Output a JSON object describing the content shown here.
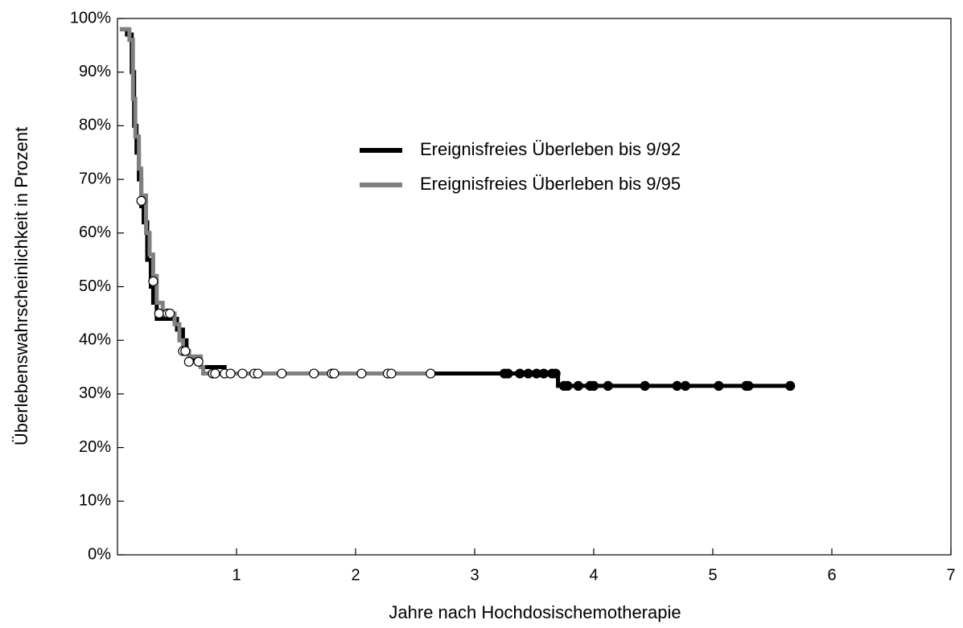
{
  "chart_data": {
    "type": "step",
    "x_label": "Jahre nach Hochdosischemotherapie",
    "y_label": "Überlebenswahrscheinlichkeit in Prozent",
    "xlim": [
      0,
      7
    ],
    "xticks": [
      1,
      2,
      3,
      4,
      5,
      6,
      7
    ],
    "ylim": [
      0,
      100
    ],
    "yticks": [
      {
        "value": 0,
        "label": "0%"
      },
      {
        "value": 10,
        "label": "10%"
      },
      {
        "value": 20,
        "label": "20%"
      },
      {
        "value": 30,
        "label": "30%"
      },
      {
        "value": 40,
        "label": "40%"
      },
      {
        "value": 50,
        "label": "50%"
      },
      {
        "value": 60,
        "label": "60%"
      },
      {
        "value": 70,
        "label": "70%"
      },
      {
        "value": 80,
        "label": "80%"
      },
      {
        "value": 90,
        "label": "90%"
      },
      {
        "value": 100,
        "label": "100%"
      }
    ],
    "series": [
      {
        "name": "Ereignisfreies Überleben bis 9/92",
        "color": "#000000",
        "marker_fill": "#000000",
        "x": [
          0.02,
          0.08,
          0.12,
          0.14,
          0.16,
          0.18,
          0.2,
          0.22,
          0.25,
          0.28,
          0.3,
          0.33,
          0.45,
          0.5,
          0.55,
          0.58,
          0.6,
          0.7,
          0.9,
          3.7,
          5.65
        ],
        "values": [
          98,
          97,
          90,
          80,
          75,
          70,
          65,
          62,
          55,
          50,
          47,
          44,
          44,
          42,
          40,
          38,
          36.5,
          35,
          33.8,
          31.5,
          31.5
        ],
        "censored": {
          "x": [
            3.25,
            3.28,
            3.38,
            3.45,
            3.52,
            3.58,
            3.65,
            3.68,
            3.75,
            3.78,
            3.87,
            3.97,
            4.0,
            4.12,
            4.43,
            4.7,
            4.77,
            5.05,
            5.28,
            5.3,
            5.65
          ],
          "values": [
            33.8,
            33.8,
            33.8,
            33.8,
            33.8,
            33.8,
            33.8,
            33.8,
            31.5,
            31.5,
            31.5,
            31.5,
            31.5,
            31.5,
            31.5,
            31.5,
            31.5,
            31.5,
            31.5,
            31.5,
            31.5
          ]
        }
      },
      {
        "name": "Ereignisfreies Überleben bis 9/95",
        "color": "#808080",
        "marker_fill": "#ffffff",
        "x": [
          0.02,
          0.1,
          0.13,
          0.15,
          0.18,
          0.2,
          0.24,
          0.27,
          0.3,
          0.33,
          0.38,
          0.48,
          0.52,
          0.55,
          0.6,
          0.7,
          0.72,
          2.63
        ],
        "values": [
          98,
          96,
          85,
          78,
          72,
          67,
          60,
          56,
          52,
          47,
          45,
          43,
          40,
          38,
          37,
          35,
          33.8,
          33.8
        ],
        "censored": {
          "x": [
            0.2,
            0.3,
            0.35,
            0.42,
            0.44,
            0.55,
            0.57,
            0.6,
            0.68,
            0.8,
            0.82,
            0.9,
            0.95,
            1.05,
            1.15,
            1.18,
            1.38,
            1.65,
            1.8,
            1.82,
            2.05,
            2.27,
            2.3,
            2.63
          ],
          "values": [
            66,
            51,
            45,
            45,
            45,
            38,
            38,
            36,
            36,
            33.8,
            33.8,
            33.8,
            33.8,
            33.8,
            33.8,
            33.8,
            33.8,
            33.8,
            33.8,
            33.8,
            33.8,
            33.8,
            33.8,
            33.8
          ]
        }
      }
    ]
  }
}
